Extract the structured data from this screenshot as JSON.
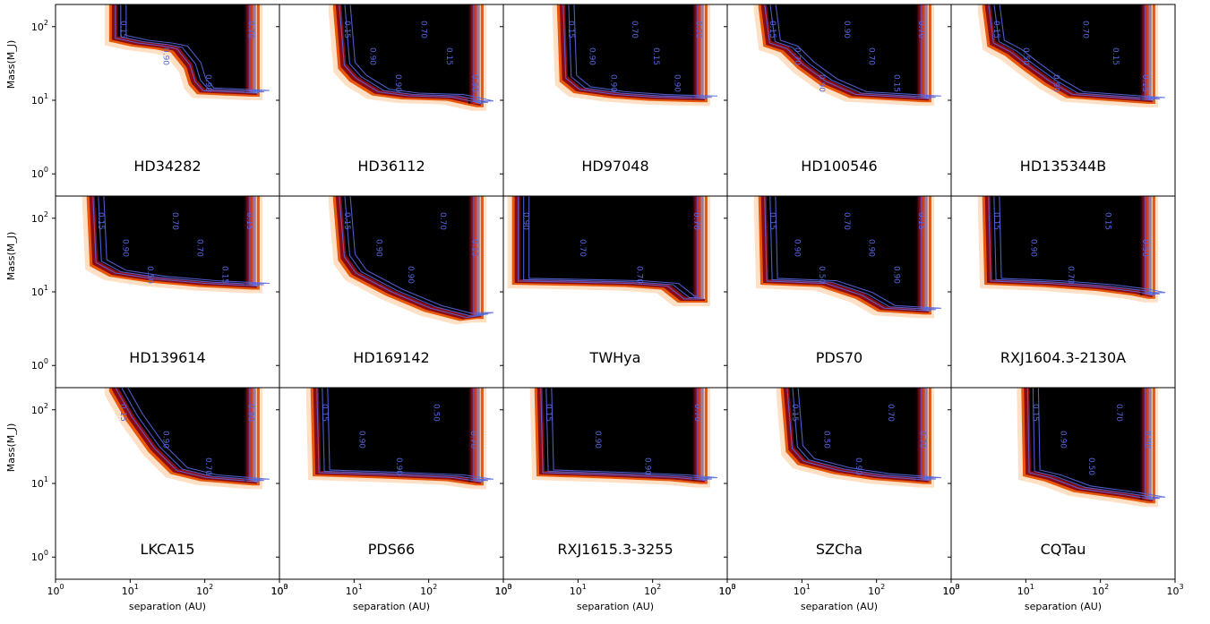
{
  "figure": {
    "ylabel": "Mass(M_J)",
    "xlabel": "separation (AU)",
    "x_tick_labels": [
      "10^0",
      "10^1",
      "10^2",
      "10^3"
    ],
    "y_tick_labels": [
      "10^0",
      "10^1",
      "10^2"
    ],
    "colormap": [
      "#ffffff",
      "#fde0c5",
      "#f7a35c",
      "#e8590c",
      "#b2182b",
      "#4a0a0a",
      "#000000"
    ],
    "contour_color": "#5566dd"
  },
  "chart_data": [
    {
      "type": "heatmap",
      "title": "HD34282",
      "xscale": "log",
      "yscale": "log",
      "xlim": [
        1,
        1000
      ],
      "ylim": [
        0.5,
        200
      ],
      "x_range": [
        6,
        500
      ],
      "y_range": [
        12.5,
        200
      ],
      "boundary": [
        [
          6,
          70
        ],
        [
          12,
          60
        ],
        [
          25,
          55
        ],
        [
          40,
          50
        ],
        [
          60,
          30
        ],
        [
          70,
          18
        ],
        [
          90,
          13.5
        ],
        [
          500,
          12.5
        ]
      ],
      "contour_labels": [
        "0.15",
        "0.90",
        "0.90",
        "0.70"
      ]
    },
    {
      "type": "heatmap",
      "title": "HD36112",
      "xscale": "log",
      "yscale": "log",
      "xlim": [
        1,
        1000
      ],
      "ylim": [
        0.5,
        200
      ],
      "x_range": [
        6,
        500
      ],
      "y_range": [
        9,
        200
      ],
      "boundary": [
        [
          6,
          200
        ],
        [
          7,
          30
        ],
        [
          10,
          20
        ],
        [
          20,
          13
        ],
        [
          50,
          11.5
        ],
        [
          200,
          11
        ],
        [
          500,
          9
        ]
      ],
      "contour_labels": [
        "0.15",
        "0.90",
        "0.90",
        "0.70",
        "0.15",
        "0.90"
      ]
    },
    {
      "type": "heatmap",
      "title": "HD97048",
      "xscale": "log",
      "yscale": "log",
      "xlim": [
        1,
        1000
      ],
      "ylim": [
        0.5,
        200
      ],
      "x_range": [
        6,
        500
      ],
      "y_range": [
        10,
        200
      ],
      "boundary": [
        [
          6,
          200
        ],
        [
          6.5,
          20
        ],
        [
          10,
          14
        ],
        [
          30,
          12
        ],
        [
          100,
          11
        ],
        [
          500,
          10.5
        ]
      ],
      "contour_labels": [
        "0.15",
        "0.90",
        "0.90",
        "0.70",
        "0.15",
        "0.90",
        "0.70"
      ]
    },
    {
      "type": "heatmap",
      "title": "HD100546",
      "xscale": "log",
      "yscale": "log",
      "xlim": [
        1,
        1000
      ],
      "ylim": [
        0.5,
        200
      ],
      "x_range": [
        3,
        500
      ],
      "y_range": [
        10.5,
        200
      ],
      "boundary": [
        [
          3,
          200
        ],
        [
          3.5,
          60
        ],
        [
          6,
          50
        ],
        [
          10,
          30
        ],
        [
          20,
          18
        ],
        [
          50,
          12
        ],
        [
          500,
          10.5
        ]
      ],
      "contour_labels": [
        "0.15",
        "0.70",
        "0.90",
        "0.90",
        "0.70",
        "0.15",
        "0.70"
      ]
    },
    {
      "type": "heatmap",
      "title": "HD135344B",
      "xscale": "log",
      "yscale": "log",
      "xlim": [
        1,
        1000
      ],
      "ylim": [
        0.5,
        200
      ],
      "x_range": [
        3,
        500
      ],
      "y_range": [
        10,
        200
      ],
      "boundary": [
        [
          3,
          200
        ],
        [
          3.5,
          60
        ],
        [
          6,
          45
        ],
        [
          10,
          30
        ],
        [
          20,
          18
        ],
        [
          40,
          12
        ],
        [
          500,
          10
        ]
      ],
      "contour_labels": [
        "0.15",
        "0.50",
        "0.90",
        "0.70",
        "0.15",
        "0.15"
      ]
    },
    {
      "type": "heatmap",
      "title": "HD139614",
      "xscale": "log",
      "yscale": "log",
      "xlim": [
        1,
        1000
      ],
      "ylim": [
        0.5,
        200
      ],
      "x_range": [
        3,
        500
      ],
      "y_range": [
        12,
        200
      ],
      "boundary": [
        [
          3,
          200
        ],
        [
          3.3,
          25
        ],
        [
          6,
          18
        ],
        [
          20,
          15
        ],
        [
          100,
          13
        ],
        [
          500,
          12
        ]
      ],
      "contour_labels": [
        "0.15",
        "0.90",
        "0.50",
        "0.70",
        "0.70",
        "0.15",
        "0.15"
      ]
    },
    {
      "type": "heatmap",
      "title": "HD169142",
      "xscale": "log",
      "yscale": "log",
      "xlim": [
        1,
        1000
      ],
      "ylim": [
        0.5,
        200
      ],
      "x_range": [
        6,
        500
      ],
      "y_range": [
        4.5,
        200
      ],
      "boundary": [
        [
          6,
          200
        ],
        [
          7,
          30
        ],
        [
          10,
          18
        ],
        [
          30,
          10
        ],
        [
          100,
          6
        ],
        [
          300,
          4.5
        ],
        [
          500,
          4.8
        ]
      ],
      "contour_labels": [
        "0.15",
        "0.90",
        "0.90",
        "0.70",
        "0.15"
      ]
    },
    {
      "type": "heatmap",
      "title": "TWHya",
      "xscale": "log",
      "yscale": "log",
      "xlim": [
        1,
        1000
      ],
      "ylim": [
        0.5,
        200
      ],
      "x_range": [
        1.5,
        500
      ],
      "y_range": [
        8,
        200
      ],
      "boundary": [
        [
          1.5,
          14
        ],
        [
          10,
          13.5
        ],
        [
          50,
          13
        ],
        [
          150,
          12
        ],
        [
          250,
          8
        ]
      ],
      "contour_labels": [
        "0.90",
        "0.70",
        "0.70",
        "0.70"
      ]
    },
    {
      "type": "heatmap",
      "title": "PDS70",
      "xscale": "log",
      "yscale": "log",
      "xlim": [
        1,
        1000
      ],
      "ylim": [
        0.5,
        200
      ],
      "x_range": [
        3,
        500
      ],
      "y_range": [
        5.5,
        200
      ],
      "boundary": [
        [
          3,
          200
        ],
        [
          3.2,
          14
        ],
        [
          20,
          13
        ],
        [
          60,
          9
        ],
        [
          120,
          6
        ],
        [
          500,
          5.5
        ]
      ],
      "contour_labels": [
        "0.15",
        "0.90",
        "0.50",
        "0.70",
        "0.90",
        "0.90",
        "0.15"
      ]
    },
    {
      "type": "heatmap",
      "title": "RXJ1604.3-2130A",
      "xscale": "log",
      "yscale": "log",
      "xlim": [
        1,
        1000
      ],
      "ylim": [
        0.5,
        200
      ],
      "x_range": [
        3,
        500
      ],
      "y_range": [
        9,
        200
      ],
      "boundary": [
        [
          3,
          200
        ],
        [
          3.2,
          14
        ],
        [
          20,
          13
        ],
        [
          100,
          11.5
        ],
        [
          300,
          10
        ],
        [
          500,
          9
        ]
      ],
      "contour_labels": [
        "0.15",
        "0.90",
        "0.70",
        "0.15",
        "0.50"
      ]
    },
    {
      "type": "heatmap",
      "title": "LKCA15",
      "xscale": "log",
      "yscale": "log",
      "xlim": [
        1,
        1000
      ],
      "ylim": [
        0.5,
        200
      ],
      "x_range": [
        6,
        500
      ],
      "y_range": [
        10.5,
        200
      ],
      "boundary": [
        [
          6,
          200
        ],
        [
          10,
          80
        ],
        [
          20,
          30
        ],
        [
          40,
          15
        ],
        [
          100,
          12
        ],
        [
          500,
          10.5
        ]
      ],
      "contour_labels": [
        "0.15",
        "0.90",
        "0.70",
        "0.90"
      ]
    },
    {
      "type": "heatmap",
      "title": "PDS66",
      "xscale": "log",
      "yscale": "log",
      "xlim": [
        1,
        1000
      ],
      "ylim": [
        0.5,
        200
      ],
      "x_range": [
        3,
        500
      ],
      "y_range": [
        10.5,
        200
      ],
      "boundary": [
        [
          3,
          200
        ],
        [
          3.2,
          14
        ],
        [
          30,
          13
        ],
        [
          200,
          12
        ],
        [
          500,
          10.5
        ]
      ],
      "contour_labels": [
        "0.15",
        "0.90",
        "0.90",
        "0.50",
        "0.70"
      ]
    },
    {
      "type": "heatmap",
      "title": "RXJ1615.3-3255",
      "xscale": "log",
      "yscale": "log",
      "xlim": [
        1,
        1000
      ],
      "ylim": [
        0.5,
        200
      ],
      "x_range": [
        3,
        500
      ],
      "y_range": [
        11,
        200
      ],
      "boundary": [
        [
          3,
          200
        ],
        [
          3.2,
          14
        ],
        [
          30,
          13
        ],
        [
          200,
          12
        ],
        [
          500,
          11
        ]
      ],
      "contour_labels": [
        "0.15",
        "0.90",
        "0.90",
        "0.70"
      ]
    },
    {
      "type": "heatmap",
      "title": "SZCha",
      "xscale": "log",
      "yscale": "log",
      "xlim": [
        1,
        1000
      ],
      "ylim": [
        0.5,
        200
      ],
      "x_range": [
        6,
        500
      ],
      "y_range": [
        11,
        200
      ],
      "boundary": [
        [
          6,
          200
        ],
        [
          7,
          30
        ],
        [
          10,
          20
        ],
        [
          30,
          15
        ],
        [
          100,
          12.5
        ],
        [
          500,
          11
        ]
      ],
      "contour_labels": [
        "0.15",
        "0.50",
        "0.90",
        "0.70",
        "0.70"
      ]
    },
    {
      "type": "heatmap",
      "title": "CQTau",
      "xscale": "log",
      "yscale": "log",
      "xlim": [
        1,
        1000
      ],
      "ylim": [
        0.5,
        200
      ],
      "x_range": [
        10,
        500
      ],
      "y_range": [
        5.5,
        200
      ],
      "boundary": [
        [
          10,
          200
        ],
        [
          10.5,
          14
        ],
        [
          20,
          12
        ],
        [
          50,
          8.5
        ],
        [
          200,
          7
        ],
        [
          500,
          6
        ]
      ],
      "contour_labels": [
        "0.15",
        "0.90",
        "0.50",
        "0.70",
        "0.90"
      ]
    }
  ]
}
